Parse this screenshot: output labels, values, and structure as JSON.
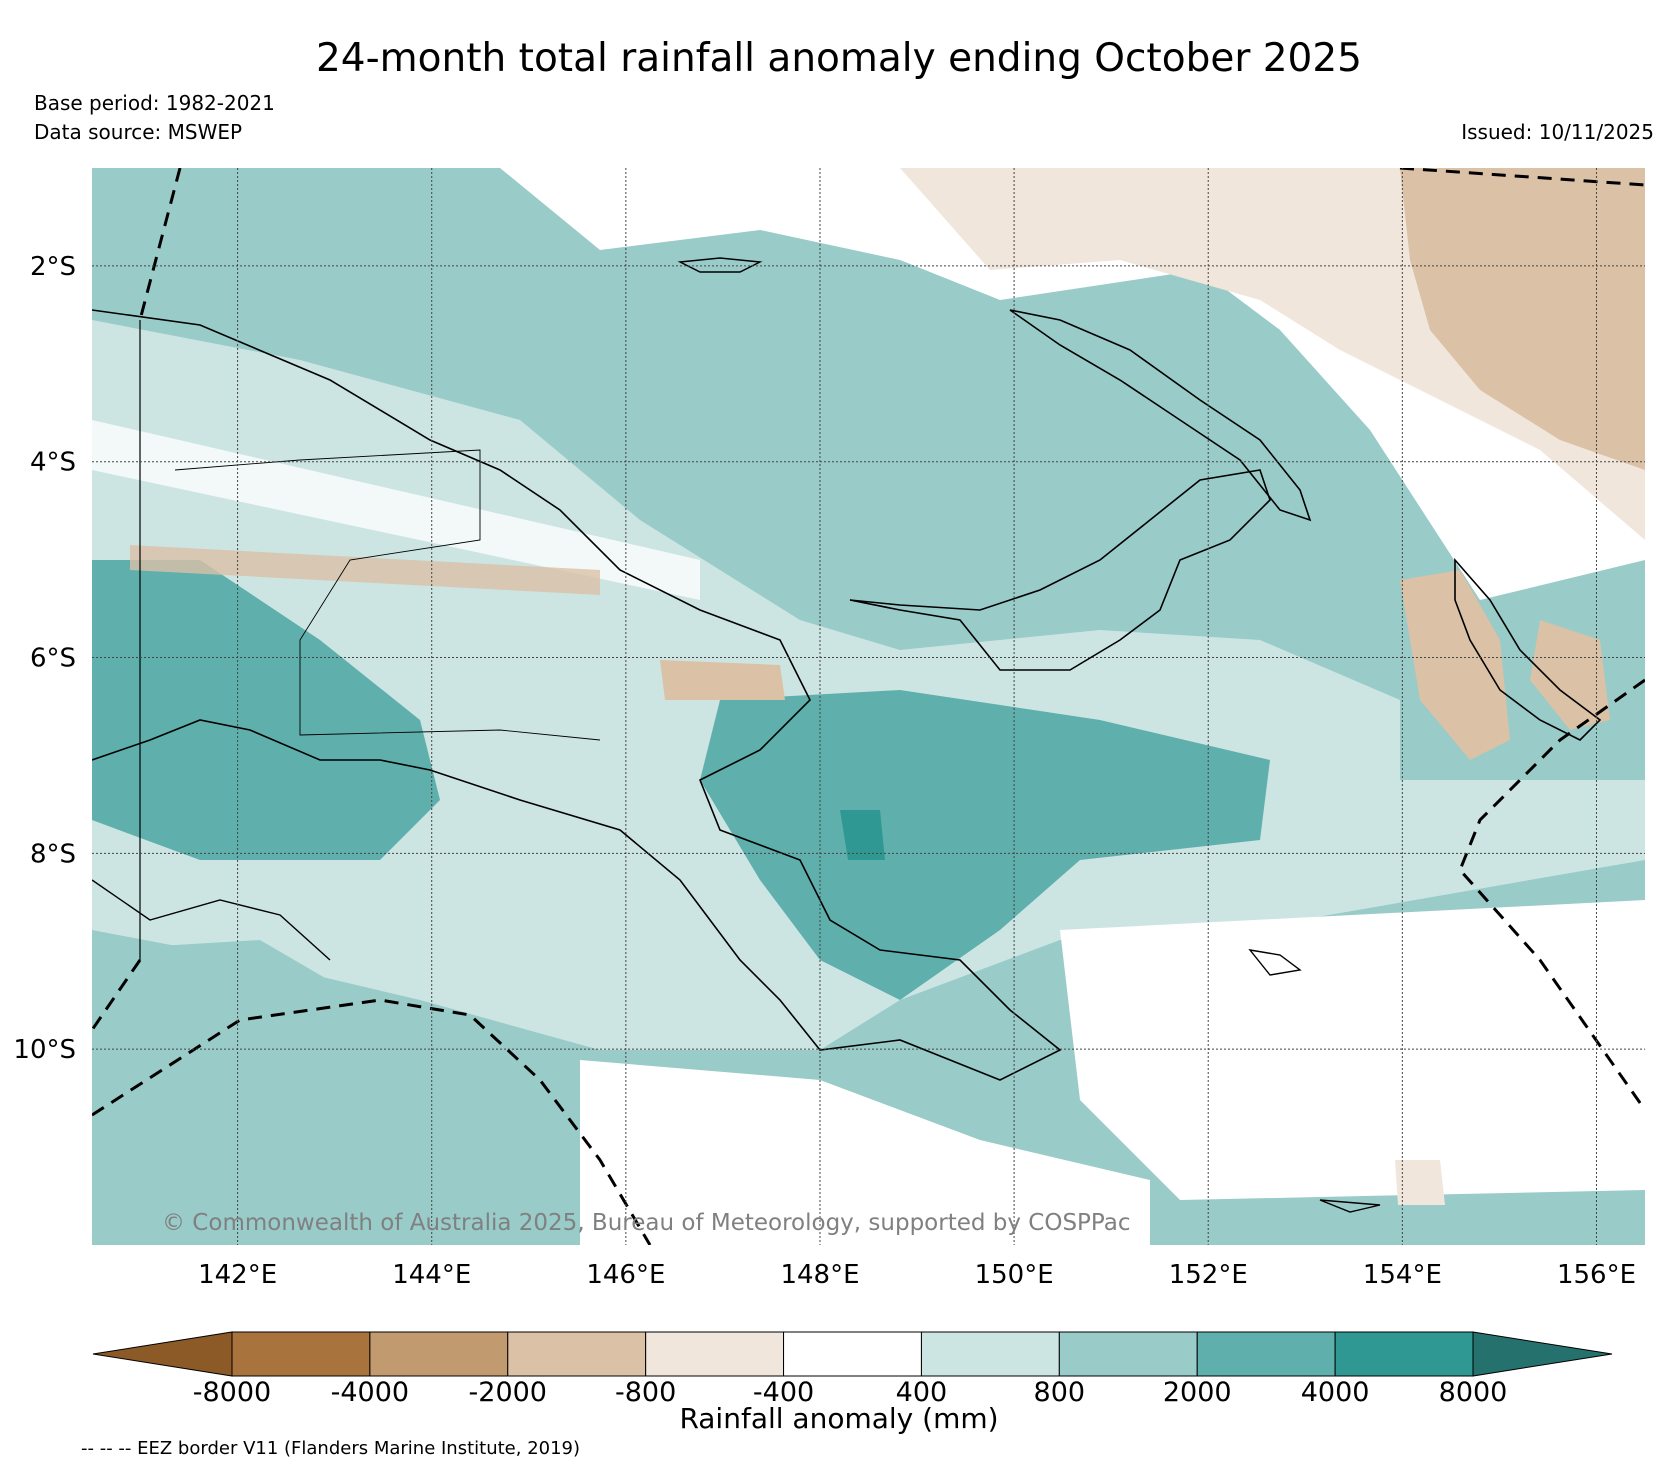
{
  "title": "24-month total rainfall anomaly ending October 2025",
  "base_period": "Base period: 1982-2021",
  "data_source": "Data source: MSWEP",
  "issued": "Issued: 10/11/2025",
  "copyright": "© Commonwealth of Australia 2025, Bureau of Meteorology, supported by COSPPac",
  "map": {
    "lat_labels": [
      "2°S",
      "4°S",
      "6°S",
      "8°S",
      "10°S"
    ],
    "lon_labels": [
      "142°E",
      "144°E",
      "146°E",
      "148°E",
      "150°E",
      "152°E",
      "154°E",
      "156°E"
    ],
    "lat_values": [
      -2,
      -4,
      -6,
      -8,
      -10
    ],
    "lon_values": [
      142,
      144,
      146,
      148,
      150,
      152,
      154,
      156
    ],
    "lon_range": [
      140.5,
      156.5
    ],
    "lat_range": [
      -12,
      -1
    ]
  },
  "colorbar": {
    "label": "Rainfall anomaly (mm)",
    "tick_labels": [
      "-8000",
      "-4000",
      "-2000",
      "-800",
      "-400",
      "400",
      "800",
      "2000",
      "4000",
      "8000"
    ],
    "colors": [
      "#8c5a26",
      "#a8733c",
      "#c29a70",
      "#dbc1a6",
      "#f0e6dc",
      "#ffffff",
      "#cce5e3",
      "#99cbc9",
      "#5fafad",
      "#2f9893",
      "#24716d"
    ]
  },
  "eez_note": "-- -- -- EEZ border V11 (Flanders Marine Institute, 2019)"
}
